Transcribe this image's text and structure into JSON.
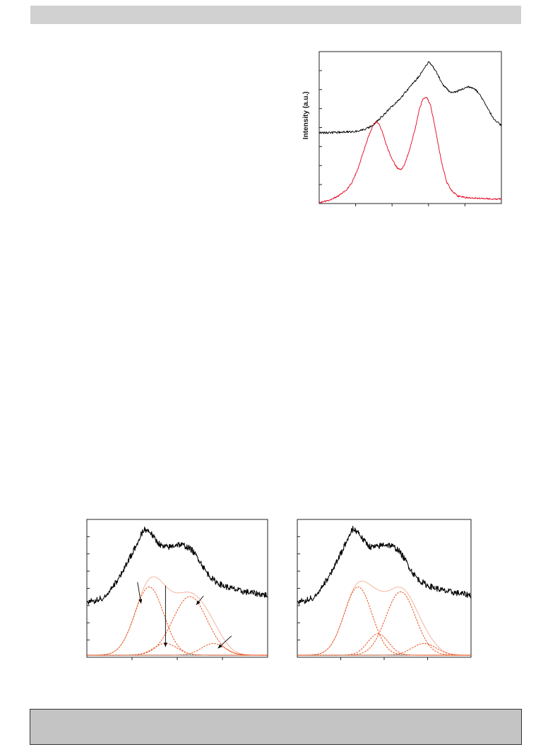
{
  "chart_data": [
    {
      "id": "top-right",
      "type": "line",
      "ylabel": "Intensity (a.u.)",
      "xlim": [
        0,
        100
      ],
      "ylim": [
        0,
        100
      ],
      "x_ticks": [
        20,
        40,
        60,
        80
      ],
      "y_ticks": [
        12.5,
        25,
        37.5,
        50,
        62.5,
        75,
        87.5
      ],
      "series": [
        {
          "color": "#000000",
          "noise": 0.7,
          "x": [
            0,
            10,
            20,
            25,
            30,
            35,
            40,
            45,
            50,
            55,
            58,
            60,
            62,
            65,
            68,
            72,
            75,
            78,
            82,
            85,
            88,
            92,
            96,
            100
          ],
          "y": [
            46.5,
            46.8,
            47.5,
            48.5,
            52,
            58,
            64,
            70,
            77,
            84,
            90,
            93,
            91,
            85,
            78,
            73,
            73.5,
            75,
            77,
            76,
            72,
            64,
            55,
            51.5
          ]
        },
        {
          "color": "#e3001b",
          "noise": 0.5,
          "x": [
            0,
            5,
            10,
            15,
            18,
            21,
            24,
            27,
            29,
            31,
            33,
            35,
            37,
            40,
            43,
            45,
            47,
            50,
            53,
            55,
            57,
            59,
            61,
            63,
            65,
            67,
            70,
            73,
            76,
            80,
            85,
            90,
            95,
            100
          ],
          "y": [
            0.5,
            2,
            4.5,
            9,
            14,
            22,
            33,
            44,
            50,
            54,
            52,
            46,
            38,
            29,
            23,
            22.5,
            26,
            37,
            51,
            62,
            69,
            70,
            65,
            54,
            41,
            28,
            14,
            8,
            5,
            4,
            3.5,
            3.5,
            3,
            3
          ]
        }
      ]
    },
    {
      "id": "bottom-left",
      "type": "line",
      "xlim": [
        0,
        100
      ],
      "ylim": [
        0,
        100
      ],
      "x_ticks": [
        25,
        50,
        75
      ],
      "y_ticks": [
        12.5,
        25,
        37.5,
        50,
        62.5,
        75,
        87.5
      ],
      "baseline": 1.5,
      "series": [
        {
          "color": "#000000",
          "noise": 2.2,
          "x": [
            0,
            5,
            10,
            15,
            20,
            25,
            28,
            30,
            32,
            35,
            38,
            42,
            46,
            50,
            54,
            58,
            62,
            66,
            70,
            75,
            80,
            85,
            90,
            95,
            100
          ],
          "y": [
            40,
            41,
            44,
            52,
            63,
            75,
            83,
            89,
            93,
            91,
            85,
            80,
            80,
            82,
            81,
            78,
            71,
            62,
            56,
            52,
            50,
            48,
            47,
            46,
            45
          ]
        }
      ],
      "gaussians": [
        {
          "mu": 34.5,
          "amp": 49.5,
          "sigma": 8,
          "color": "#e8511a"
        },
        {
          "mu": 43.5,
          "amp": 8.5,
          "sigma": 6.5,
          "color": "#e8511a"
        },
        {
          "mu": 57,
          "amp": 42.5,
          "sigma": 9.5,
          "color": "#e8511a"
        },
        {
          "mu": 70,
          "amp": 8.5,
          "sigma": 6.5,
          "color": "#e8511a"
        }
      ],
      "arrows": [
        {
          "from": [
            28,
            54.5
          ],
          "to": [
            30,
            39
          ]
        },
        {
          "from": [
            43.5,
            52
          ],
          "to": [
            43.5,
            7.5
          ]
        },
        {
          "from": [
            64.5,
            44.5
          ],
          "to": [
            60.5,
            38
          ]
        },
        {
          "from": [
            80,
            15.5
          ],
          "to": [
            72.5,
            6.5
          ]
        }
      ]
    },
    {
      "id": "bottom-right",
      "type": "line",
      "xlim": [
        0,
        100
      ],
      "ylim": [
        0,
        100
      ],
      "x_ticks": [
        25,
        50,
        75
      ],
      "y_ticks": [
        12.5,
        25,
        37.5,
        50,
        62.5,
        75,
        87.5
      ],
      "baseline": 1.5,
      "series": [
        {
          "color": "#000000",
          "noise": 2.2,
          "x": [
            0,
            5,
            10,
            15,
            20,
            25,
            28,
            30,
            32,
            35,
            38,
            42,
            46,
            50,
            54,
            58,
            62,
            66,
            70,
            75,
            80,
            85,
            90,
            95,
            100
          ],
          "y": [
            40,
            41,
            44,
            52,
            63,
            75,
            83,
            89,
            93,
            91,
            85,
            80,
            80,
            82,
            81,
            78,
            71,
            62,
            56,
            52,
            50,
            48,
            47,
            46,
            45
          ]
        }
      ],
      "gaussians": [
        {
          "mu": 35,
          "amp": 49.5,
          "sigma": 8,
          "color": "#e8511a"
        },
        {
          "mu": 46.5,
          "amp": 15.5,
          "sigma": 6,
          "color": "#e8511a"
        },
        {
          "mu": 59.5,
          "amp": 46,
          "sigma": 8.5,
          "color": "#e8511a"
        },
        {
          "mu": 73,
          "amp": 8.5,
          "sigma": 7,
          "color": "#e8511a"
        }
      ]
    }
  ]
}
